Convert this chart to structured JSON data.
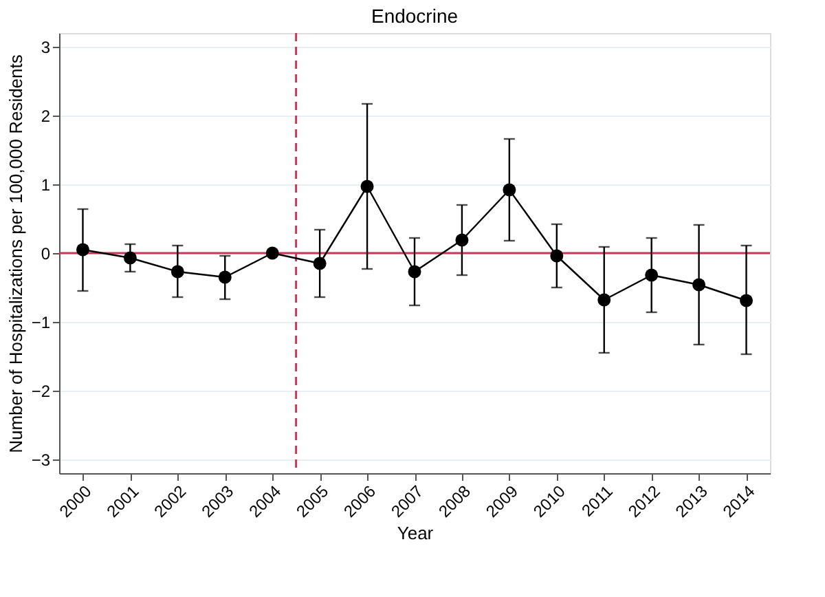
{
  "chart_data": {
    "type": "line",
    "title": "Endocrine",
    "xlabel": "Year",
    "ylabel": "Number of Hospitalizations per 100,000 Residents",
    "x": [
      2000,
      2001,
      2002,
      2003,
      2004,
      2005,
      2006,
      2007,
      2008,
      2009,
      2010,
      2011,
      2012,
      2013,
      2014
    ],
    "series": [
      {
        "color": "#000000",
        "values": [
          0.05,
          -0.07,
          -0.27,
          -0.35,
          0,
          -0.15,
          0.97,
          -0.27,
          0.19,
          0.92,
          -0.04,
          -0.68,
          -0.32,
          -0.46,
          -0.69
        ],
        "errors": [
          [
            -0.55,
            0.64
          ],
          [
            -0.27,
            0.13
          ],
          [
            -0.64,
            0.11
          ],
          [
            -0.67,
            -0.04
          ],
          null,
          [
            -0.64,
            0.34
          ],
          [
            -0.23,
            2.17
          ],
          [
            -0.76,
            0.22
          ],
          [
            -0.32,
            0.7
          ],
          [
            0.18,
            1.66
          ],
          [
            -0.5,
            0.42
          ],
          [
            -1.45,
            0.09
          ],
          [
            -0.86,
            0.22
          ],
          [
            -1.33,
            0.41
          ],
          [
            -1.47,
            0.11
          ]
        ]
      }
    ],
    "xlim": [
      1999.5,
      2014.5
    ],
    "xticks": [
      2000,
      2001,
      2002,
      2003,
      2004,
      2005,
      2006,
      2007,
      2008,
      2009,
      2010,
      2011,
      2012,
      2013,
      2014
    ],
    "ylim": [
      -3.2,
      3.2
    ],
    "yticks": [
      -3,
      -2,
      -1,
      0,
      1,
      2,
      3
    ],
    "ref_lines": [
      {
        "axis": "y",
        "value": 0,
        "color": "#c8385a",
        "line_style": "solid"
      },
      {
        "axis": "x",
        "value": 2004.5,
        "color": "#c8385a",
        "line_style": "dashed"
      }
    ],
    "grid": "y",
    "marker": "circle",
    "line_style": "solid"
  }
}
